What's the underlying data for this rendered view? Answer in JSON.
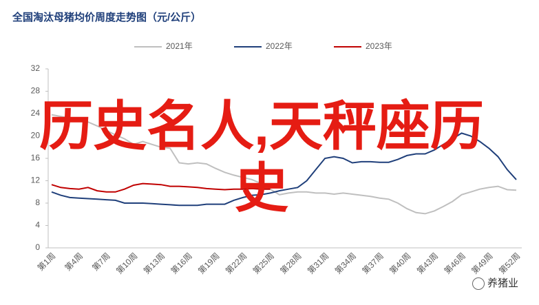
{
  "chart_data": {
    "type": "line",
    "title": "全国淘汰母猪均价周度走势图（元/公斤）",
    "categories": [
      "第1周",
      null,
      null,
      "第4周",
      null,
      null,
      "第7周",
      null,
      null,
      "第10周",
      null,
      null,
      "第13周",
      null,
      null,
      "第16周",
      null,
      null,
      "第19周",
      null,
      null,
      "第22周",
      null,
      null,
      "第25周",
      null,
      null,
      "第28周",
      null,
      null,
      "第31周",
      null,
      null,
      "第34周",
      null,
      null,
      "第37周",
      null,
      null,
      "第40周",
      null,
      null,
      "第43周",
      null,
      null,
      "第46周",
      null,
      null,
      "第49周",
      null,
      null,
      "第52周"
    ],
    "series": [
      {
        "name": "2021年",
        "color": "#bfbfbf",
        "values": [
          23.8,
          23.5,
          23.2,
          23.0,
          22.5,
          21.8,
          21.0,
          20.2,
          19.5,
          18.5,
          19.0,
          18.5,
          18.0,
          17.8,
          15.2,
          15.0,
          15.2,
          15.0,
          14.2,
          13.5,
          13.0,
          12.6,
          12.2,
          11.5,
          10.5,
          9.5,
          9.8,
          10.0,
          10.0,
          9.8,
          9.8,
          9.6,
          9.8,
          9.6,
          9.4,
          9.2,
          8.9,
          8.7,
          8.0,
          7.0,
          6.3,
          6.1,
          6.6,
          7.4,
          8.3,
          9.5,
          10.0,
          10.5,
          10.8,
          11.0,
          10.4,
          10.3
        ]
      },
      {
        "name": "2022年",
        "color": "#1f3f7a",
        "values": [
          10.0,
          9.4,
          9.0,
          8.9,
          8.8,
          8.7,
          8.6,
          8.5,
          8.0,
          8.0,
          8.0,
          7.9,
          7.8,
          7.7,
          7.6,
          7.6,
          7.6,
          7.8,
          7.8,
          7.8,
          8.5,
          9.0,
          9.4,
          9.5,
          9.8,
          10.2,
          10.5,
          10.8,
          12.0,
          14.0,
          16.0,
          16.3,
          16.0,
          15.2,
          15.4,
          15.4,
          15.3,
          15.3,
          15.8,
          16.5,
          16.8,
          16.8,
          17.5,
          18.5,
          19.5,
          20.5,
          20.0,
          19.0,
          17.8,
          16.3,
          14.0,
          12.2
        ]
      },
      {
        "name": "2023年",
        "color": "#c00000",
        "values": [
          11.3,
          10.8,
          10.6,
          10.5,
          10.8,
          10.2,
          10.0,
          10.0,
          10.5,
          11.2,
          11.5,
          11.4,
          11.3,
          11.0,
          11.0,
          10.9,
          10.8,
          10.6,
          10.5,
          10.4,
          10.5,
          10.5,
          10.6,
          10.5,
          10.5,
          null,
          null,
          null,
          null,
          null,
          null,
          null,
          null,
          null,
          null,
          null,
          null,
          null,
          null,
          null,
          null,
          null,
          null,
          null,
          null,
          null,
          null,
          null,
          null,
          null,
          null,
          null
        ]
      }
    ],
    "ylim": [
      0,
      32
    ],
    "yticks": [
      0,
      4,
      8,
      12,
      16,
      20,
      24,
      28,
      32
    ],
    "legend": "top",
    "overlay_text": "历史名人,天秤座历史",
    "watermark": "养猪业"
  }
}
